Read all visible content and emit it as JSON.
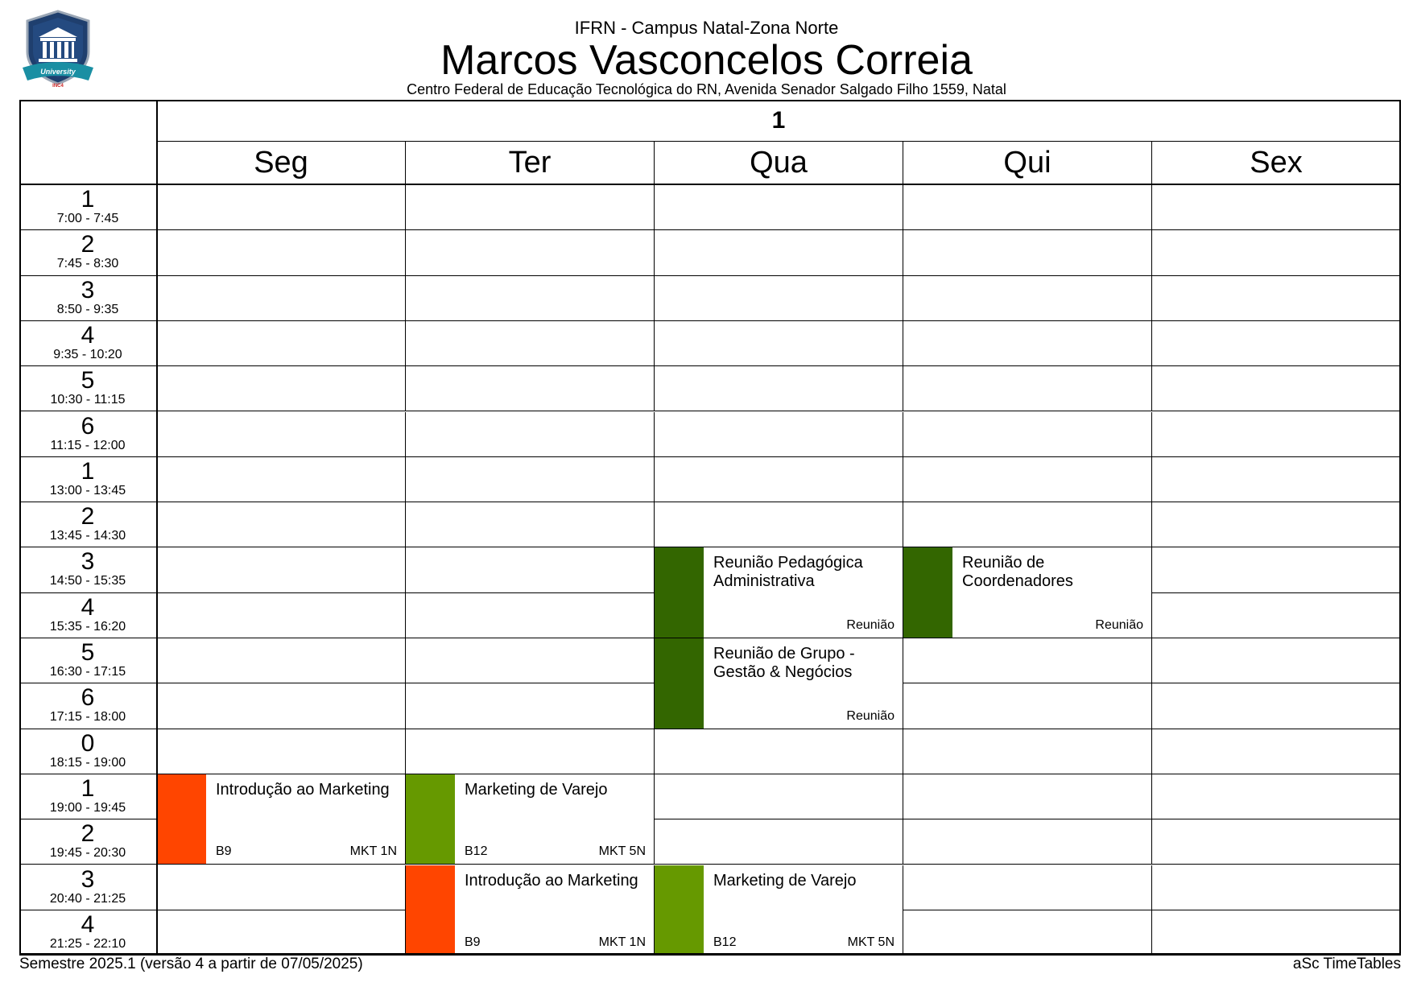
{
  "header": {
    "institution": "IFRN - Campus Natal-Zona Norte",
    "teacher": "Marcos Vasconcelos Correia",
    "address": "Centro Federal de Educação Tecnológica do RN, Avenida Senador Salgado Filho 1559, Natal",
    "logo_text": "University",
    "logo_subtext": "INC4"
  },
  "week_label": "1",
  "days": [
    "Seg",
    "Ter",
    "Qua",
    "Qui",
    "Sex"
  ],
  "periods": [
    {
      "num": "1",
      "time": "7:00 - 7:45"
    },
    {
      "num": "2",
      "time": "7:45 - 8:30"
    },
    {
      "num": "3",
      "time": "8:50 - 9:35"
    },
    {
      "num": "4",
      "time": "9:35 - 10:20"
    },
    {
      "num": "5",
      "time": "10:30 - 11:15"
    },
    {
      "num": "6",
      "time": "11:15 - 12:00"
    },
    {
      "num": "1",
      "time": "13:00 - 13:45"
    },
    {
      "num": "2",
      "time": "13:45 - 14:30"
    },
    {
      "num": "3",
      "time": "14:50 - 15:35"
    },
    {
      "num": "4",
      "time": "15:35 - 16:20"
    },
    {
      "num": "5",
      "time": "16:30 - 17:15"
    },
    {
      "num": "6",
      "time": "17:15 - 18:00"
    },
    {
      "num": "0",
      "time": "18:15 - 19:00"
    },
    {
      "num": "1",
      "time": "19:00 - 19:45"
    },
    {
      "num": "2",
      "time": "19:45 - 20:30"
    },
    {
      "num": "3",
      "time": "20:40 - 21:25"
    },
    {
      "num": "4",
      "time": "21:25 - 22:10"
    }
  ],
  "lessons": [
    {
      "day": 2,
      "start": 8,
      "span": 2,
      "subject": "Reunião Pedagógica Administrativa",
      "room": "",
      "class": "Reunião",
      "color": "#336600"
    },
    {
      "day": 3,
      "start": 8,
      "span": 2,
      "subject": "Reunião de Coordenadores",
      "room": "",
      "class": "Reunião",
      "color": "#336600"
    },
    {
      "day": 2,
      "start": 10,
      "span": 2,
      "subject": "Reunião de Grupo - Gestão & Negócios",
      "room": "",
      "class": "Reunião",
      "color": "#336600"
    },
    {
      "day": 0,
      "start": 13,
      "span": 2,
      "subject": "Introdução ao Marketing",
      "room": "B9",
      "class": "MKT 1N",
      "color": "#FF4500"
    },
    {
      "day": 1,
      "start": 13,
      "span": 2,
      "subject": "Marketing de Varejo",
      "room": "B12",
      "class": "MKT 5N",
      "color": "#669900"
    },
    {
      "day": 1,
      "start": 15,
      "span": 2,
      "subject": "Introdução ao Marketing",
      "room": "B9",
      "class": "MKT 1N",
      "color": "#FF4500"
    },
    {
      "day": 2,
      "start": 15,
      "span": 2,
      "subject": "Marketing de Varejo",
      "room": "B12",
      "class": "MKT 5N",
      "color": "#669900"
    }
  ],
  "footer": {
    "semester": "Semestre 2025.1 (versão 4 a partir de 07/05/2025)",
    "software": "aSc TimeTables"
  }
}
